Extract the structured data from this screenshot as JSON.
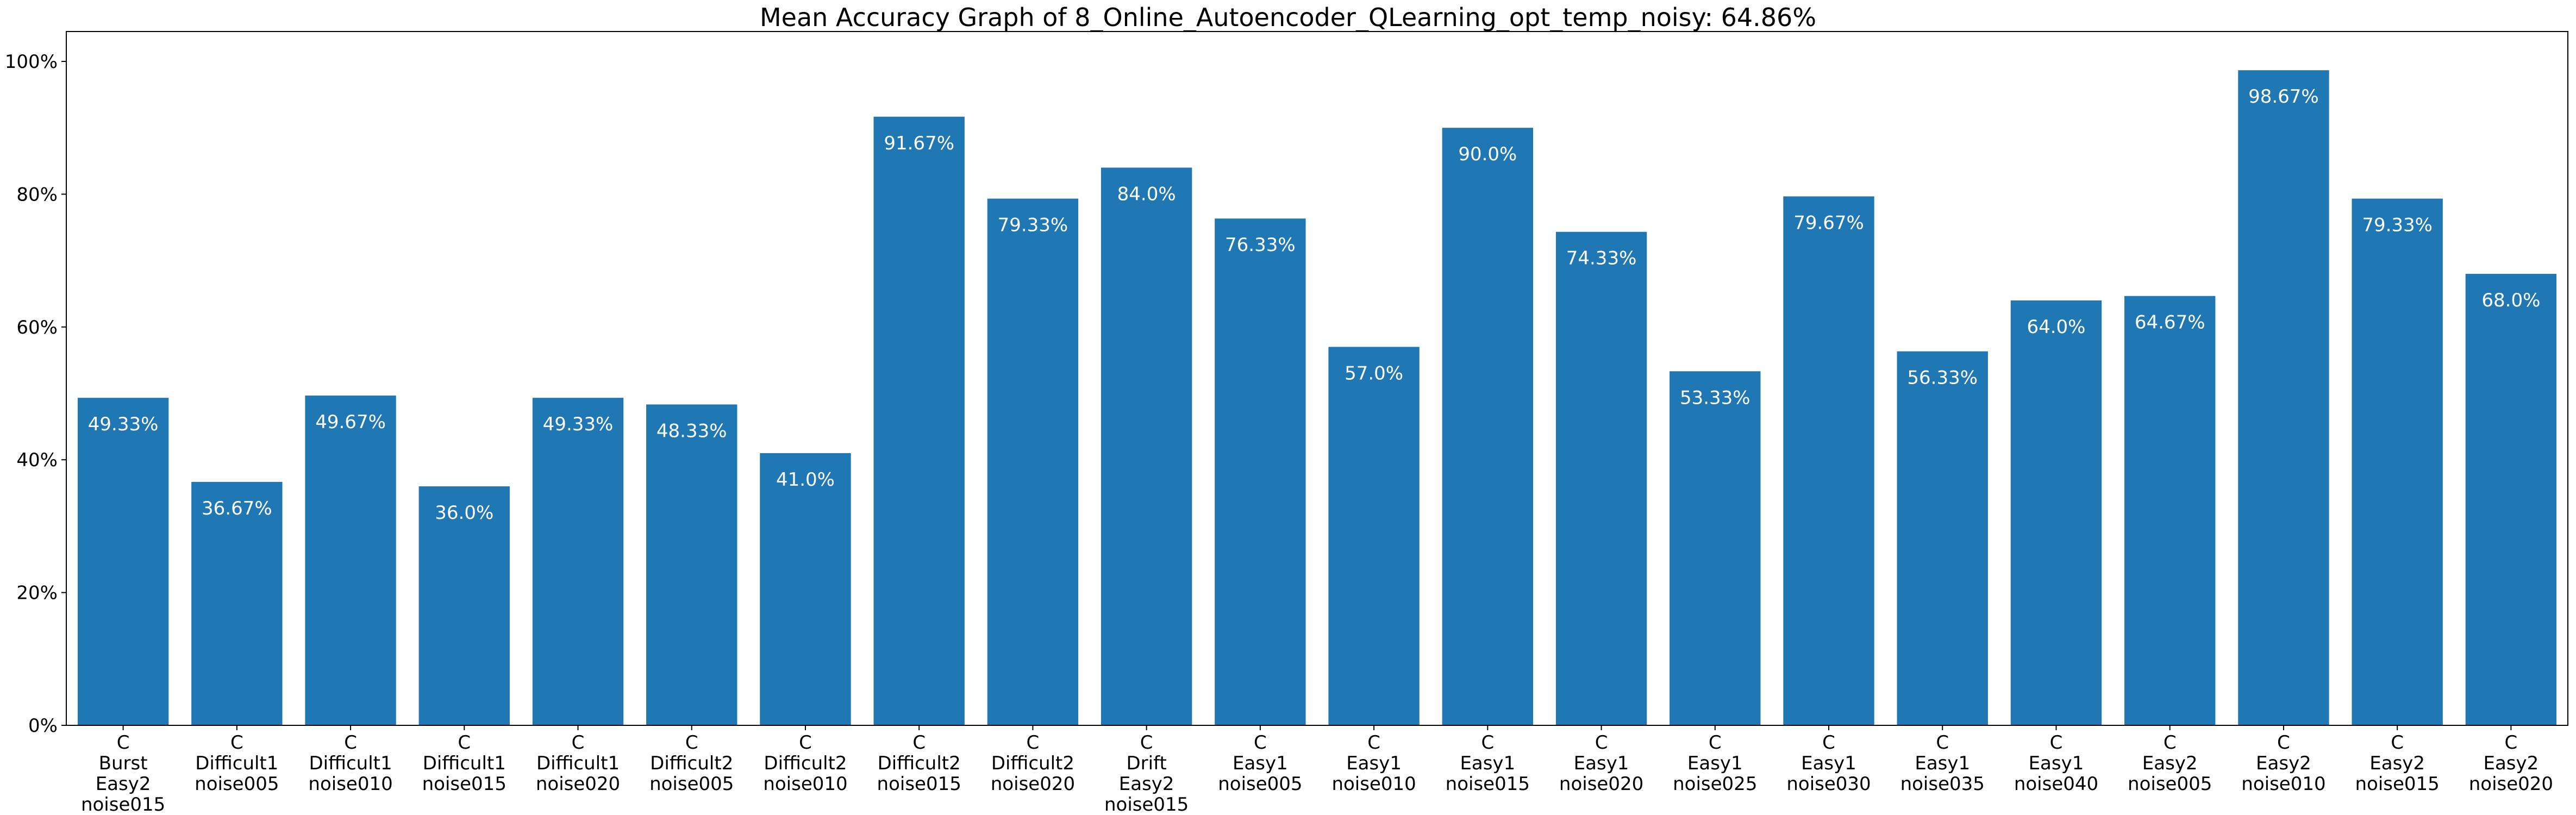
{
  "chart_data": {
    "type": "bar",
    "title": "Mean Accuracy Graph of 8_Online_Autoencoder_QLearning_opt_temp_noisy: 64.86%",
    "xlabel": "",
    "ylabel": "",
    "ylim": [
      0,
      100
    ],
    "yticks": [
      0,
      20,
      40,
      60,
      80,
      100
    ],
    "ytick_labels": [
      "0%",
      "20%",
      "40%",
      "60%",
      "80%",
      "100%"
    ],
    "grid": false,
    "bar_color": "#1f77b4",
    "value_label_color": "#ffffff",
    "categories": [
      [
        "C",
        "Burst",
        "Easy2",
        "noise015"
      ],
      [
        "C",
        "Difficult1",
        "noise005"
      ],
      [
        "C",
        "Difficult1",
        "noise010"
      ],
      [
        "C",
        "Difficult1",
        "noise015"
      ],
      [
        "C",
        "Difficult1",
        "noise020"
      ],
      [
        "C",
        "Difficult2",
        "noise005"
      ],
      [
        "C",
        "Difficult2",
        "noise010"
      ],
      [
        "C",
        "Difficult2",
        "noise015"
      ],
      [
        "C",
        "Difficult2",
        "noise020"
      ],
      [
        "C",
        "Drift",
        "Easy2",
        "noise015"
      ],
      [
        "C",
        "Easy1",
        "noise005"
      ],
      [
        "C",
        "Easy1",
        "noise010"
      ],
      [
        "C",
        "Easy1",
        "noise015"
      ],
      [
        "C",
        "Easy1",
        "noise020"
      ],
      [
        "C",
        "Easy1",
        "noise025"
      ],
      [
        "C",
        "Easy1",
        "noise030"
      ],
      [
        "C",
        "Easy1",
        "noise035"
      ],
      [
        "C",
        "Easy1",
        "noise040"
      ],
      [
        "C",
        "Easy2",
        "noise005"
      ],
      [
        "C",
        "Easy2",
        "noise010"
      ],
      [
        "C",
        "Easy2",
        "noise015"
      ],
      [
        "C",
        "Easy2",
        "noise020"
      ]
    ],
    "values": [
      49.33,
      36.67,
      49.67,
      36.0,
      49.33,
      48.33,
      41.0,
      91.67,
      79.33,
      84.0,
      76.33,
      57.0,
      90.0,
      74.33,
      53.33,
      79.67,
      56.33,
      64.0,
      64.67,
      98.67,
      79.33,
      68.0
    ],
    "value_labels": [
      "49.33%",
      "36.67%",
      "49.67%",
      "36.0%",
      "49.33%",
      "48.33%",
      "41.0%",
      "91.67%",
      "79.33%",
      "84.0%",
      "76.33%",
      "57.0%",
      "90.0%",
      "74.33%",
      "53.33%",
      "79.67%",
      "56.33%",
      "64.0%",
      "64.67%",
      "98.67%",
      "79.33%",
      "68.0%"
    ]
  }
}
